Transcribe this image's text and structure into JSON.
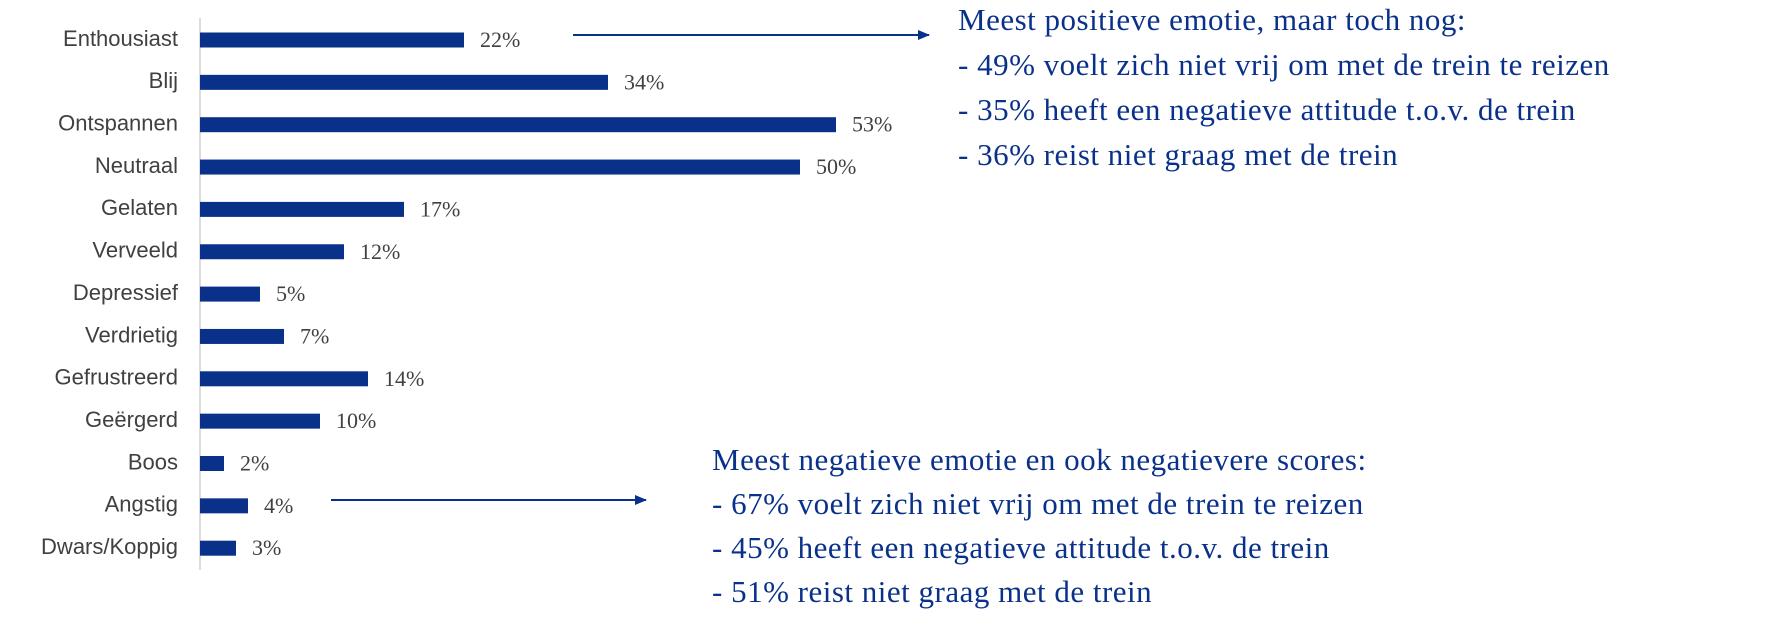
{
  "chart_data": {
    "type": "bar",
    "orientation": "horizontal",
    "categories": [
      "Enthousiast",
      "Blij",
      "Ontspannen",
      "Neutraal",
      "Gelaten",
      "Verveeld",
      "Depressief",
      "Verdrietig",
      "Gefrustreerd",
      "Geërgerd",
      "Boos",
      "Angstig",
      "Dwars/Koppig"
    ],
    "values": [
      22,
      34,
      53,
      50,
      17,
      12,
      5,
      7,
      14,
      10,
      2,
      4,
      3
    ],
    "value_labels": [
      "22%",
      "34%",
      "53%",
      "50%",
      "17%",
      "12%",
      "5%",
      "7%",
      "14%",
      "10%",
      "2%",
      "4%",
      "3%"
    ],
    "color": "#0a318a",
    "annotations": [
      {
        "lines": [
          "Meest positieve emotie, maar toch nog:",
          "- 49% voelt zich niet vrij om met de trein te reizen",
          "- 35% heeft een negatieve attitude t.o.v. de trein",
          "- 36% reist niet graag met de trein"
        ]
      },
      {
        "lines": [
          "Meest negatieve emotie en ook negatievere scores:",
          "- 67% voelt zich niet vrij om met de trein te reizen",
          "- 45% heeft een negatieve attitude t.o.v. de trein",
          "- 51% reist niet graag met de trein"
        ]
      }
    ]
  }
}
